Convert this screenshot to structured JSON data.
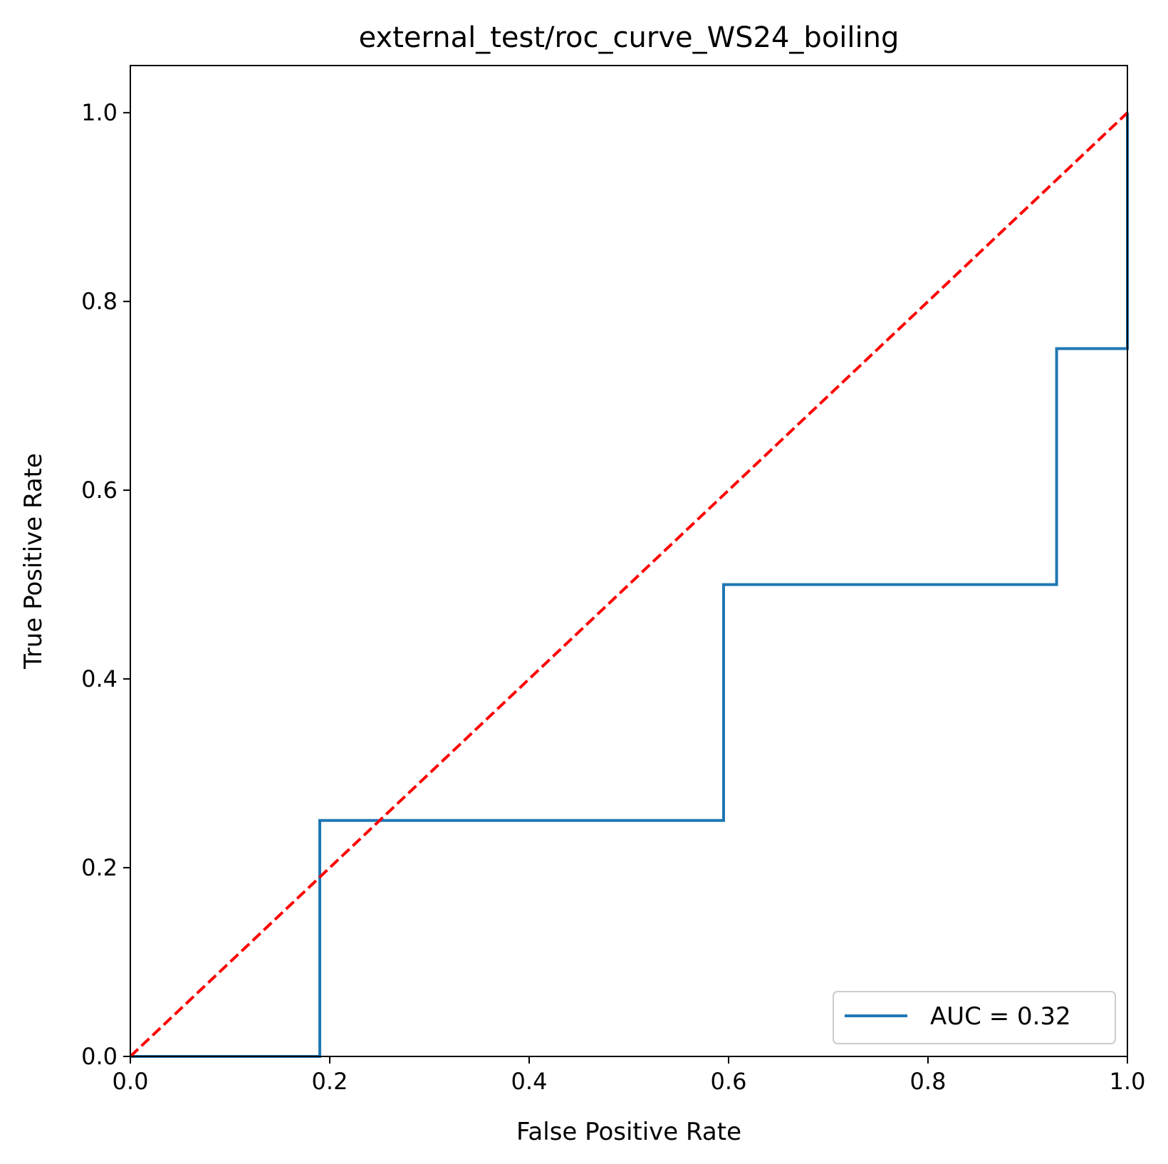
{
  "chart_data": {
    "type": "line",
    "title": "external_test/roc_curve_WS24_boiling",
    "xlabel": "False Positive Rate",
    "ylabel": "True Positive Rate",
    "xlim": [
      0.0,
      1.0
    ],
    "ylim": [
      0.0,
      1.05
    ],
    "xticks": [
      "0.0",
      "0.2",
      "0.4",
      "0.6",
      "0.8",
      "1.0"
    ],
    "yticks": [
      "0.0",
      "0.2",
      "0.4",
      "0.6",
      "0.8",
      "1.0"
    ],
    "grid": false,
    "legend_position": "lower-right",
    "series": [
      {
        "name": "AUC = 0.32",
        "color": "#1f77b4",
        "style": "solid",
        "x": [
          0.0,
          0.19,
          0.19,
          0.595,
          0.595,
          0.929,
          0.929,
          1.0,
          1.0
        ],
        "y": [
          0.0,
          0.0,
          0.25,
          0.25,
          0.5,
          0.5,
          0.75,
          0.75,
          1.0
        ]
      },
      {
        "color": "#ff0000",
        "style": "dashed",
        "x": [
          0.0,
          1.0
        ],
        "y": [
          0.0,
          1.0
        ]
      }
    ]
  }
}
